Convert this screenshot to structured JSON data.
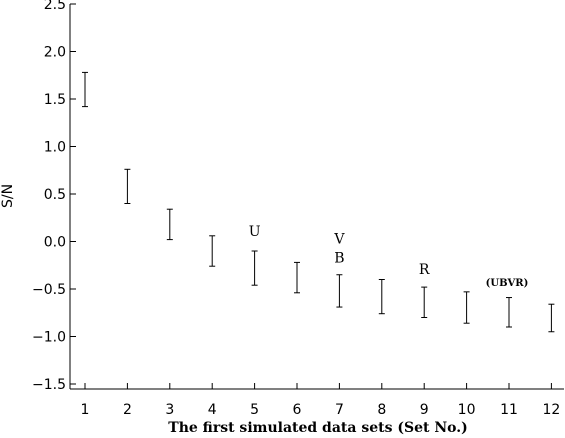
{
  "chart_data": {
    "type": "errorbar",
    "xlabel": "The first simulated data sets (Set No.)",
    "ylabel": "S/N",
    "xlim": [
      0.5,
      12.3
    ],
    "ylim": [
      -1.5,
      2.5
    ],
    "xticks": [
      "1",
      "2",
      "3",
      "4",
      "5",
      "6",
      "7",
      "8",
      "9",
      "10",
      "11",
      "12"
    ],
    "yticks": [
      "2.5",
      "2.0",
      "1.5",
      "1.0",
      "0.5",
      "0.0",
      "−0.5",
      "−1.0",
      "−1.5"
    ],
    "ytick_values": [
      2.5,
      2.0,
      1.5,
      1.0,
      0.5,
      0.0,
      -0.5,
      -1.0,
      -1.5
    ],
    "grid": false,
    "series": [
      {
        "x": [
          1,
          2,
          3,
          4,
          5,
          6,
          7,
          8,
          9,
          10,
          11,
          12
        ],
        "low": [
          1.42,
          0.4,
          0.02,
          -0.26,
          -0.46,
          -0.54,
          -0.69,
          -0.76,
          -0.8,
          -0.86,
          -0.9,
          -0.95
        ],
        "high": [
          1.78,
          0.76,
          0.34,
          0.06,
          -0.1,
          -0.22,
          -0.35,
          -0.4,
          -0.48,
          -0.53,
          -0.59,
          -0.66
        ]
      }
    ],
    "annotations": [
      {
        "text": "U",
        "x": 5,
        "y": 0.06,
        "style": "normal"
      },
      {
        "text": "V",
        "x": 7,
        "y": -0.02,
        "style": "normal"
      },
      {
        "text": "B",
        "x": 7,
        "y": -0.22,
        "style": "normal"
      },
      {
        "text": "R",
        "x": 9,
        "y": -0.34,
        "style": "normal"
      },
      {
        "text": "(UBVR)",
        "x": 11,
        "y": -0.47,
        "style": "small"
      }
    ]
  }
}
